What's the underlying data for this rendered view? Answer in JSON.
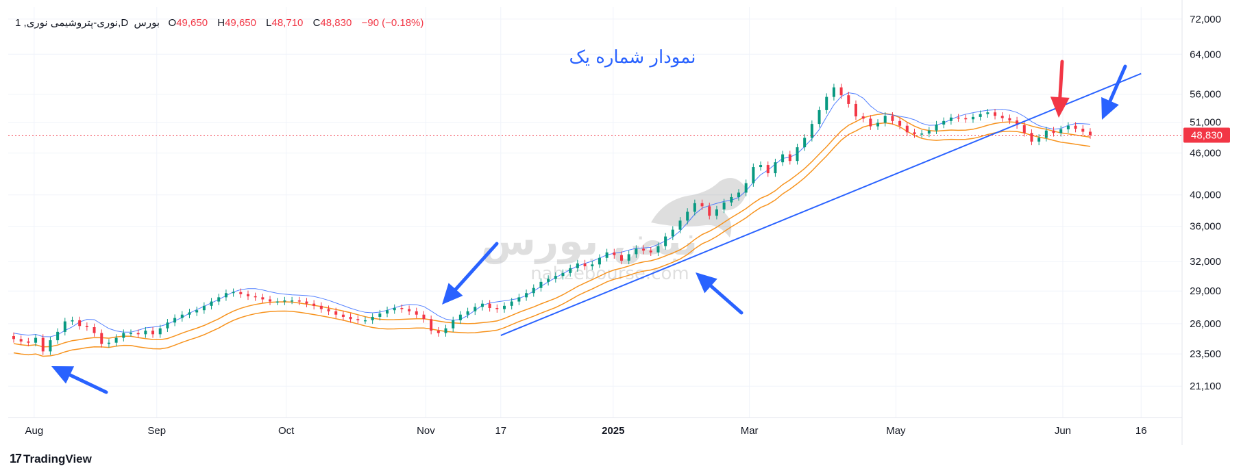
{
  "header": {
    "symbol": "1 ,نوری-پتروشیمی نوری,D",
    "exchange": "بورس",
    "open_label": "O",
    "open": "49,650",
    "high_label": "H",
    "high": "49,650",
    "low_label": "L",
    "low": "48,710",
    "close_label": "C",
    "close": "48,830",
    "change": "−90 (−0.18%)"
  },
  "brand": {
    "name": "TradingView"
  },
  "colors": {
    "up": "#089981",
    "down": "#f23645",
    "trend": "#2962ff",
    "band": "#f7931e",
    "cloud": "#2962ff",
    "grid": "#f0f3fa"
  },
  "chart_data": {
    "type": "candlestick",
    "title": "نمودار شماره یک",
    "watermark": [
      "نبض بورس",
      "nabzebourse.com"
    ],
    "price_axis_ticks": [
      21100,
      23500,
      26000,
      29000,
      32000,
      36000,
      40000,
      46000,
      51000,
      56000,
      64000,
      72000
    ],
    "price_axis_labels": [
      "21,100",
      "23,500",
      "26,000",
      "29,000",
      "32,000",
      "36,000",
      "40,000",
      "46,000",
      "51,000",
      "56,000",
      "64,000",
      "72,000"
    ],
    "y_scale": "log",
    "ylim": [
      19000,
      75000
    ],
    "last_price": 48830,
    "last_price_label": "48,830",
    "time_axis_labels": [
      "Aug",
      "Sep",
      "Oct",
      "Nov",
      "17",
      "2025",
      "Mar",
      "May",
      "Jun",
      "16"
    ],
    "time_axis_bold": [
      false,
      false,
      false,
      false,
      false,
      true,
      false,
      false,
      false,
      false
    ],
    "time_axis_positions": [
      6,
      42,
      80,
      121,
      143,
      176,
      216,
      259,
      308,
      331
    ],
    "closes": [
      24700,
      24500,
      24400,
      24800,
      23700,
      24600,
      25300,
      26200,
      26300,
      25800,
      25700,
      25200,
      24300,
      24400,
      24800,
      25200,
      25200,
      25100,
      25400,
      25100,
      25600,
      26100,
      26500,
      26800,
      27000,
      27200,
      27600,
      28000,
      28400,
      28800,
      28900,
      28700,
      28500,
      28400,
      28200,
      28000,
      28000,
      28100,
      28100,
      28000,
      27800,
      27600,
      27300,
      27100,
      26800,
      26600,
      26400,
      26300,
      26300,
      26600,
      26900,
      27200,
      27400,
      27300,
      27100,
      26800,
      26400,
      25400,
      25200,
      25600,
      26300,
      26800,
      27100,
      27500,
      27800,
      27400,
      27300,
      27600,
      28000,
      28400,
      28800,
      29300,
      29900,
      30200,
      30500,
      30800,
      31300,
      31800,
      31500,
      31700,
      32400,
      33000,
      32700,
      32100,
      32800,
      33400,
      33200,
      33000,
      33700,
      34800,
      35600,
      36700,
      37800,
      38900,
      38500,
      37300,
      38100,
      39000,
      39700,
      40300,
      41600,
      43900,
      44200,
      43000,
      44600,
      45800,
      44800,
      46900,
      48400,
      50700,
      53100,
      55500,
      57300,
      55800,
      54200,
      52000,
      51600,
      50300,
      50900,
      52100,
      51200,
      50400,
      49300,
      49000,
      49100,
      49600,
      50600,
      51200,
      51800,
      51700,
      51500,
      51900,
      52400,
      52700,
      52100,
      51700,
      51300,
      50500,
      49200,
      47800,
      48400,
      49600,
      49200,
      49800,
      50400,
      49900,
      49400,
      48830
    ],
    "series": [
      {
        "name": "",
        "type": "trendline",
        "points": [
          [
            143,
            25000
          ],
          [
            331,
            60000
          ]
        ]
      }
    ]
  }
}
